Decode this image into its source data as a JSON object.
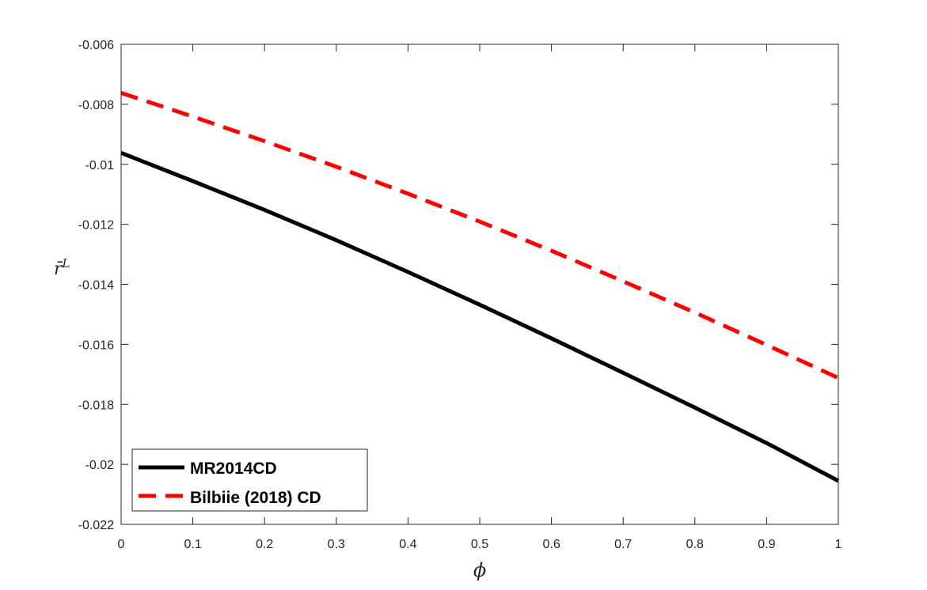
{
  "chart_data": {
    "type": "line",
    "xlabel": "ϕ",
    "ylabel": {
      "base": "r̄",
      "sup": "L"
    },
    "xlim": [
      0,
      1
    ],
    "ylim": [
      -0.022,
      -0.006
    ],
    "xticks": [
      0,
      0.1,
      0.2,
      0.3,
      0.4,
      0.5,
      0.6,
      0.7,
      0.8,
      0.9,
      1
    ],
    "xtick_labels": [
      "0",
      "0.1",
      "0.2",
      "0.3",
      "0.4",
      "0.5",
      "0.6",
      "0.7",
      "0.8",
      "0.9",
      "1"
    ],
    "yticks": [
      -0.022,
      -0.02,
      -0.018,
      -0.016,
      -0.014,
      -0.012,
      -0.01,
      -0.008,
      -0.006
    ],
    "ytick_labels": [
      "-0.022",
      "-0.02",
      "-0.018",
      "-0.016",
      "-0.014",
      "-0.012",
      "-0.01",
      "-0.008",
      "-0.006"
    ],
    "grid": false,
    "legend_position": "bottom-left",
    "x": [
      0,
      0.1,
      0.2,
      0.3,
      0.4,
      0.5,
      0.6,
      0.7,
      0.8,
      0.9,
      1
    ],
    "series": [
      {
        "name": "MR2014CD",
        "color": "#000000",
        "style": "solid",
        "values": [
          -0.00962,
          -0.01056,
          -0.01152,
          -0.01253,
          -0.01359,
          -0.01468,
          -0.0158,
          -0.01695,
          -0.01811,
          -0.01929,
          -0.02055
        ]
      },
      {
        "name": "Bilbiie (2018) CD",
        "color": "#ff0000",
        "style": "dashed",
        "values": [
          -0.00762,
          -0.00841,
          -0.00923,
          -0.01008,
          -0.01098,
          -0.01191,
          -0.01288,
          -0.0139,
          -0.01494,
          -0.01602,
          -0.01712
        ]
      }
    ]
  }
}
